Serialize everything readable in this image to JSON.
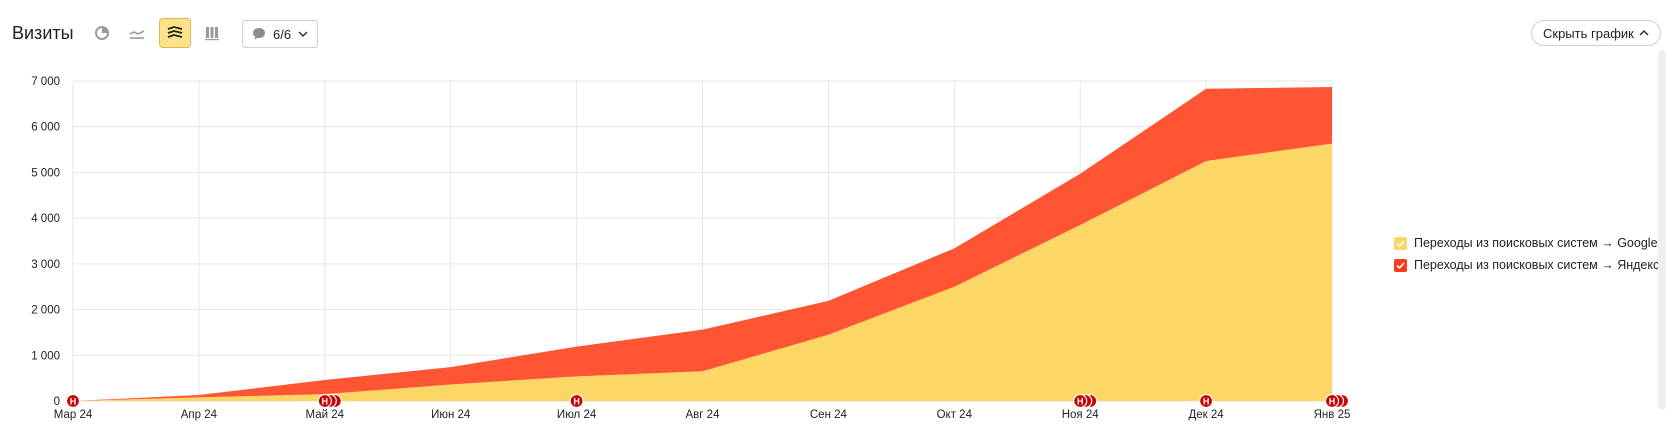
{
  "header": {
    "title": "Визиты",
    "comments_count": "6/6",
    "hide_chart_label": "Скрыть график"
  },
  "toolbar": {
    "icons": [
      "pie-chart-icon",
      "line-chart-icon",
      "area-chart-icon",
      "table-chart-icon"
    ],
    "active": "area-chart-icon"
  },
  "colors": {
    "google": "#fdd766",
    "yandex": "#ff5533",
    "marker": "#cc0000",
    "accent": "#fce38a"
  },
  "chart_data": {
    "type": "area",
    "stacked": true,
    "x": [
      "Мар 24",
      "Апр 24",
      "Май 24",
      "Июн 24",
      "Июл 24",
      "Авг 24",
      "Сен 24",
      "Окт 24",
      "Ноя 24",
      "Дек 24",
      "Янв 25"
    ],
    "series": [
      {
        "name": "Переходы из поисковых систем → Google",
        "color": "#fdd766",
        "values": [
          0,
          80,
          150,
          360,
          540,
          650,
          1450,
          2500,
          3850,
          5250,
          5630
        ]
      },
      {
        "name": "Переходы из поисковых систем → Яндекс",
        "color": "#ff5533",
        "values": [
          0,
          50,
          310,
          380,
          650,
          910,
          740,
          840,
          1120,
          1580,
          1240
        ]
      }
    ],
    "ylim": [
      0,
      7000
    ],
    "yticks": [
      0,
      1000,
      2000,
      3000,
      4000,
      5000,
      6000,
      7000
    ],
    "ytick_labels": [
      "0",
      "1 000",
      "2 000",
      "3 000",
      "4 000",
      "5 000",
      "6 000",
      "7 000"
    ],
    "grid": true,
    "legend_position": "right",
    "annotations": [
      {
        "x": "Мар 24",
        "label": "Н",
        "count": 1
      },
      {
        "x": "Май 24",
        "label": "Н",
        "count": 3
      },
      {
        "x": "Июл 24",
        "label": "Н",
        "count": 1
      },
      {
        "x": "Ноя 24",
        "label": "Н",
        "count": 3
      },
      {
        "x": "Дек 24",
        "label": "Н",
        "count": 1
      },
      {
        "x": "Янв 25",
        "label": "Н",
        "count": 3
      }
    ]
  }
}
